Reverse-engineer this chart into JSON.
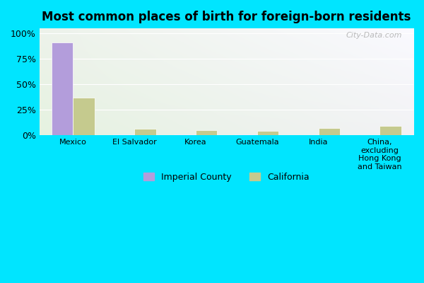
{
  "title": "Most common places of birth for foreign-born residents",
  "categories": [
    "Mexico",
    "El Salvador",
    "Korea",
    "Guatemala",
    "India",
    "China,\nexcluding\nHong Kong\nand Taiwan"
  ],
  "imperial_county": [
    91,
    1,
    1,
    1,
    0,
    0
  ],
  "california": [
    37,
    6,
    5,
    4,
    7,
    9
  ],
  "imperial_color": "#b39ddb",
  "california_color": "#c5ca8e",
  "background_color_fig": "#00e5ff",
  "yticks": [
    0,
    25,
    50,
    75,
    100
  ],
  "ytick_labels": [
    "0%",
    "25%",
    "50%",
    "75%",
    "100%"
  ],
  "legend_imperial": "Imperial County",
  "legend_california": "California",
  "bar_width": 0.35,
  "watermark": "City-Data.com"
}
